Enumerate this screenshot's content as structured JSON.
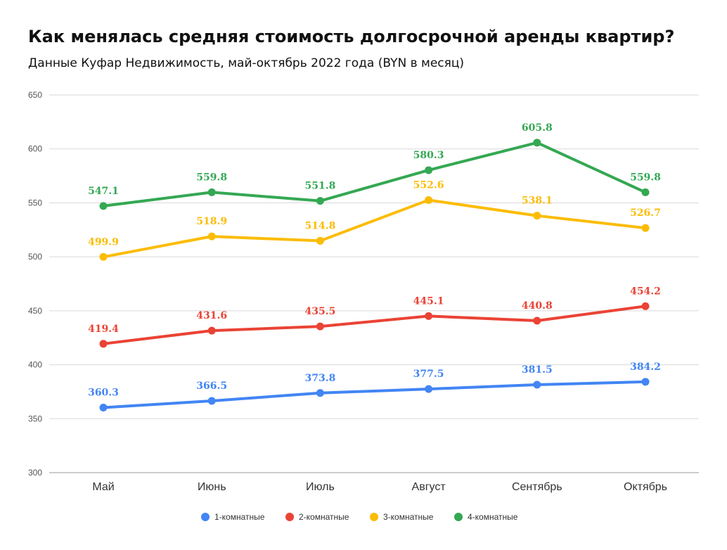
{
  "title": "Как менялась средняя стоимость долгосрочной аренды квартир?",
  "subtitle": "Данные Куфар Недвижимость, май-октябрь 2022 года (BYN в месяц)",
  "chart_data": {
    "type": "line",
    "categories": [
      "Май",
      "Июнь",
      "Июль",
      "Август",
      "Сентябрь",
      "Октябрь"
    ],
    "ylim": [
      300,
      650
    ],
    "yticks": [
      300,
      350,
      400,
      450,
      500,
      550,
      600,
      650
    ],
    "grid": true,
    "legend_position": "bottom",
    "data_labels": true,
    "series": [
      {
        "name": "1-комнатные",
        "color": "#4285F4",
        "values": [
          360.3,
          366.5,
          373.8,
          377.5,
          381.5,
          384.2
        ]
      },
      {
        "name": "2-комнатные",
        "color": "#EA4335",
        "values": [
          419.4,
          431.6,
          435.5,
          445.1,
          440.8,
          454.2
        ]
      },
      {
        "name": "3-комнатные",
        "color": "#FBBC04",
        "values": [
          499.9,
          518.9,
          514.8,
          552.6,
          538.1,
          526.7
        ]
      },
      {
        "name": "4-комнатные",
        "color": "#34A853",
        "values": [
          547.1,
          559.8,
          551.8,
          580.3,
          605.8,
          559.8
        ]
      }
    ]
  }
}
